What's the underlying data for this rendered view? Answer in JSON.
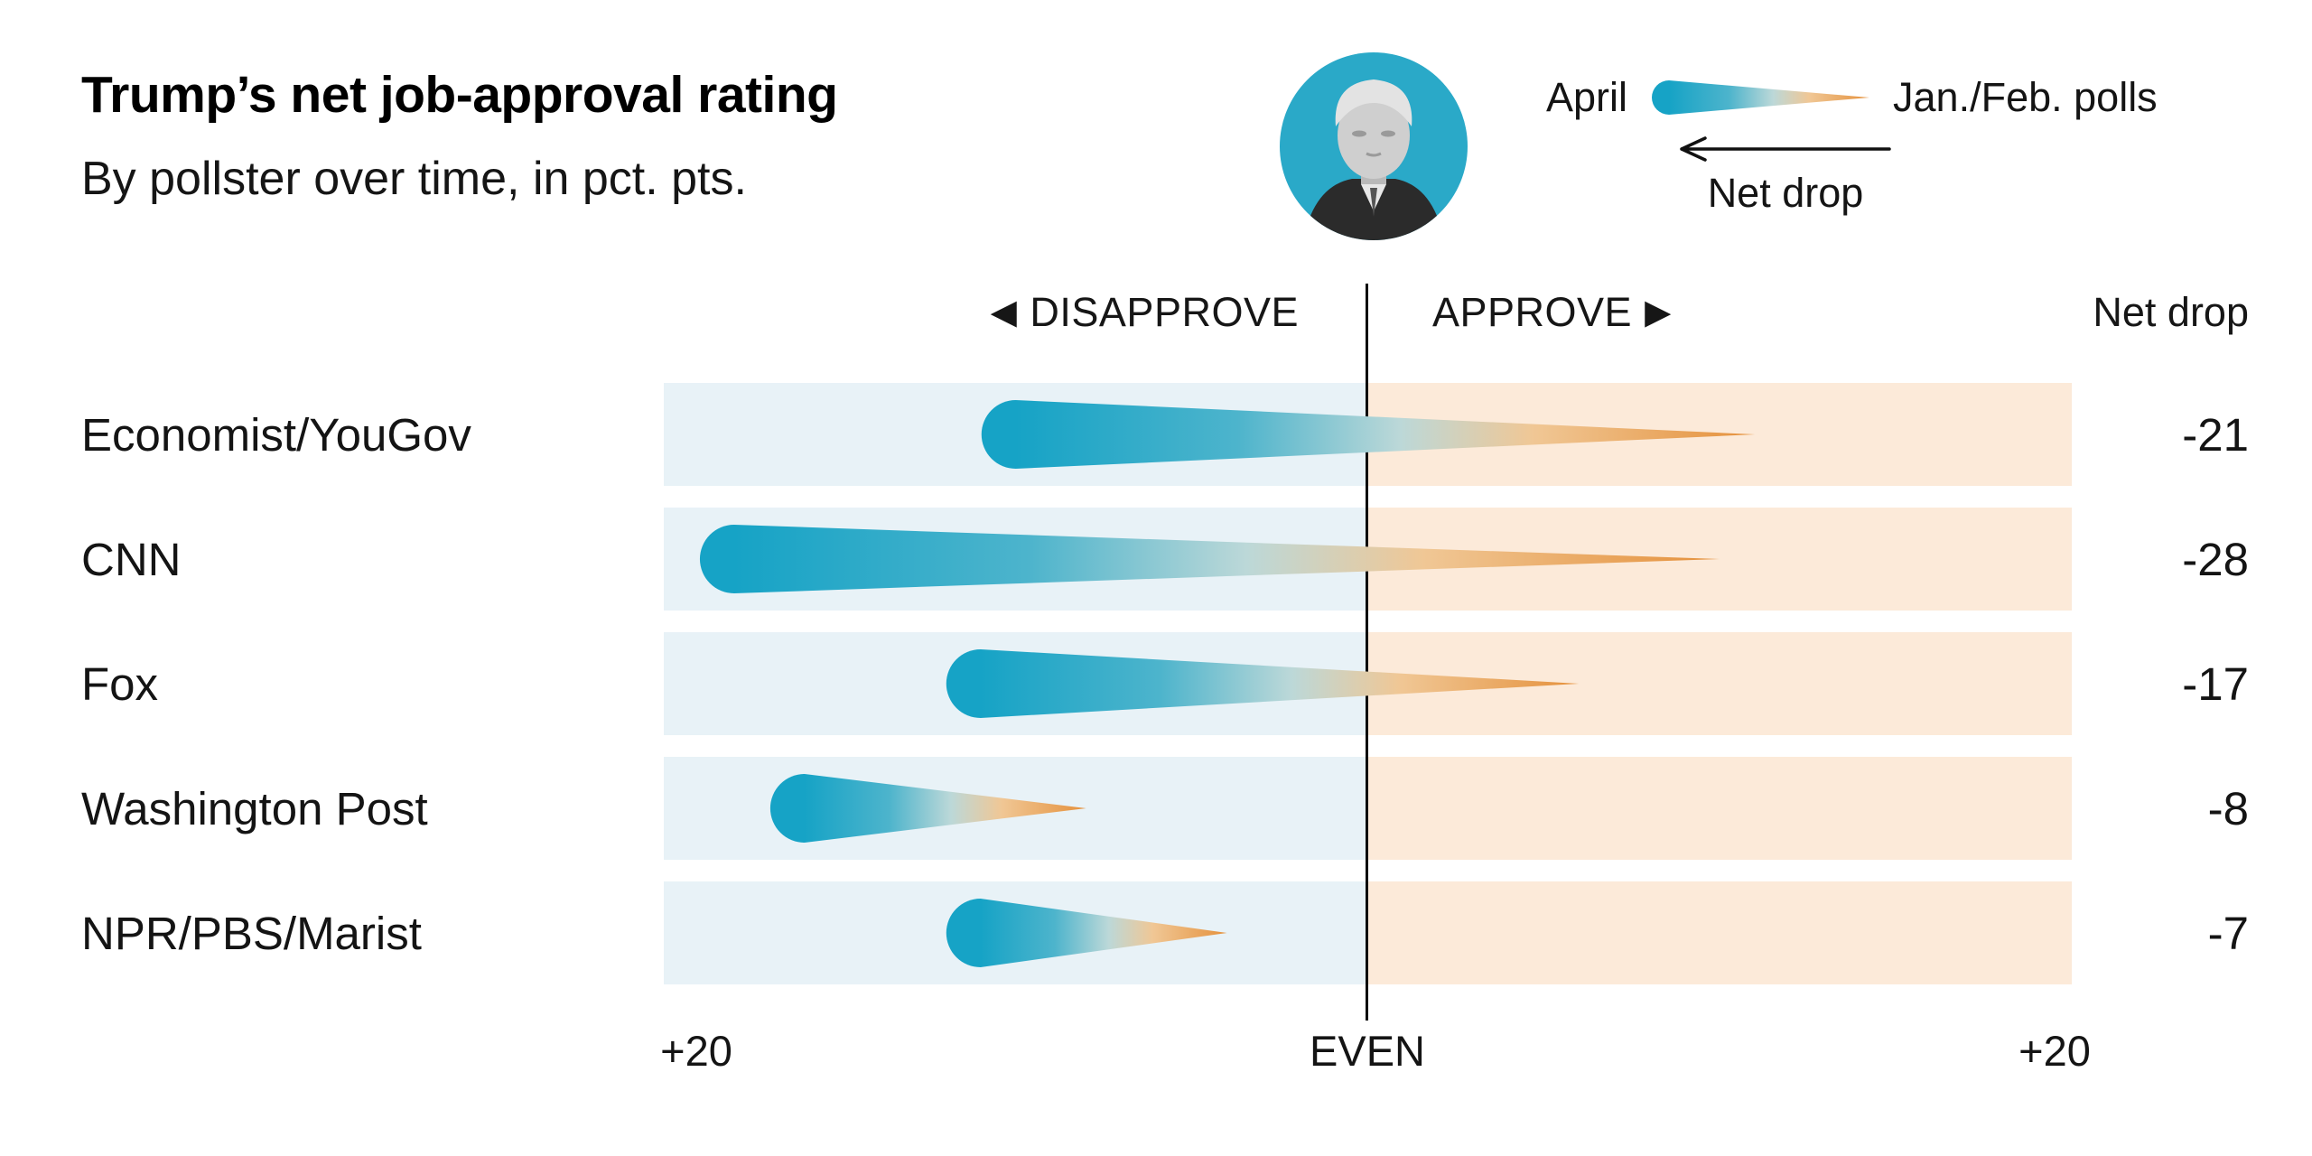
{
  "page": {
    "title": "Trump’s net job-approval rating",
    "subtitle": "By pollster over time, in pct. pts."
  },
  "legend": {
    "april_label": "April",
    "janfeb_label": "Jan./Feb. polls",
    "net_drop_label": "Net drop"
  },
  "portrait": {
    "description": "Grayscale photo of Donald Trump on teal circle"
  },
  "chart": {
    "left_header": "DISAPPROVE",
    "left_header_icon": "◀",
    "right_header": "APPROVE",
    "right_header_icon": "▶",
    "net_drop_header": "Net drop",
    "axis_left": "+20",
    "axis_center": "EVEN",
    "axis_right": "+20"
  },
  "chart_data": {
    "type": "dumbbell",
    "mark_style": "comet (thick teal head = April value, thin orange tail = Jan./Feb. value)",
    "title": "Trump’s net job-approval rating",
    "subtitle": "By pollster over time, in pct. pts.",
    "x_axis": {
      "min": -20,
      "max": 20,
      "center_label": "EVEN",
      "edge_label": "+20",
      "left_side": "DISAPPROVE",
      "right_side": "APPROVE",
      "units": "net approval, percentage points (negative = net disapprove)"
    },
    "series": [
      {
        "name": "April",
        "role": "head"
      },
      {
        "name": "Jan./Feb. polls",
        "role": "tail"
      }
    ],
    "rows": [
      {
        "pollster": "Economist/YouGov",
        "april_net": -10,
        "janfeb_net": 11,
        "net_drop": -21
      },
      {
        "pollster": "CNN",
        "april_net": -18,
        "janfeb_net": 10,
        "net_drop": -28
      },
      {
        "pollster": "Fox",
        "april_net": -11,
        "janfeb_net": 6,
        "net_drop": -17
      },
      {
        "pollster": "Washington Post",
        "april_net": -16,
        "janfeb_net": -8,
        "net_drop": -8
      },
      {
        "pollster": "NPR/PBS/Marist",
        "april_net": -11,
        "janfeb_net": -4,
        "net_drop": -7
      }
    ],
    "colors": {
      "april_teal": "#16a3c6",
      "janfeb_orange": "#e5913c",
      "disapprove_band": "#e8f2f7",
      "approve_band": "#fcead9",
      "portrait_circle": "#2aa9c8",
      "text": "#111111"
    }
  }
}
